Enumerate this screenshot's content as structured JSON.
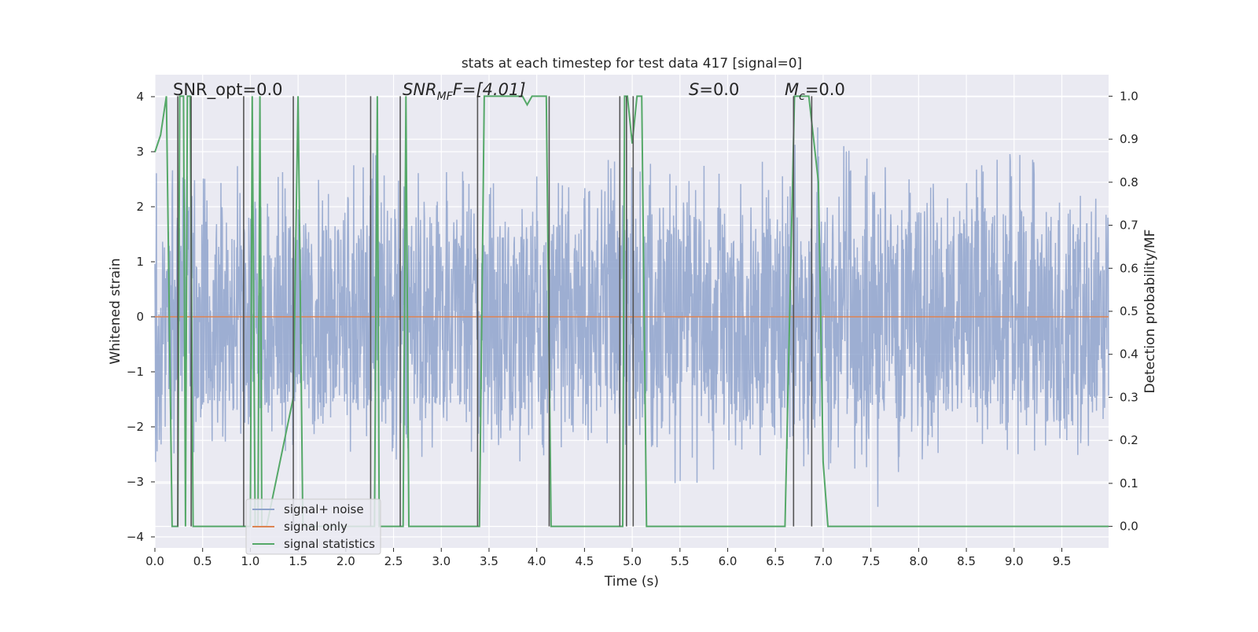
{
  "chart_data": {
    "type": "line",
    "title": "stats at each timestep for test data 417 [signal=0]",
    "xlabel": "Time (s)",
    "ylabel": "Whitened strain",
    "ylabel_right": "Detection probability/MF",
    "xlim": [
      0.0,
      9.99
    ],
    "ylim": [
      -4.2,
      4.4
    ],
    "ylim_right": [
      -0.05,
      1.05
    ],
    "xticks": [
      "0.0",
      "0.5",
      "1.0",
      "1.5",
      "2.0",
      "2.5",
      "3.0",
      "3.5",
      "4.0",
      "4.5",
      "5.0",
      "5.5",
      "6.0",
      "6.5",
      "7.0",
      "7.5",
      "8.0",
      "8.5",
      "9.0",
      "9.5"
    ],
    "yticks_left": [
      "4",
      "3",
      "2",
      "1",
      "0",
      "−1",
      "−2",
      "−3",
      "−4"
    ],
    "yticks_right": [
      "1.0",
      "0.9",
      "0.8",
      "0.7",
      "0.6",
      "0.5",
      "0.4",
      "0.3",
      "0.2",
      "0.1",
      "0.0"
    ],
    "annotations": {
      "snr_opt": "SNR_opt=0.0",
      "snr_mf_prefix": "SNR",
      "snr_mf_sub": "MF",
      "snr_mf_suffix": "F=[4.01]",
      "s_prefix": "S",
      "s_suffix": "=0.0",
      "mc_prefix": "M",
      "mc_sub": "c",
      "mc_suffix": "=0.0"
    },
    "legend": {
      "position": "lower-left",
      "entries": [
        {
          "label": "signal+ noise",
          "color": "#8fa3cc"
        },
        {
          "label": "signal only",
          "color": "#dd8452"
        },
        {
          "label": "signal statistics",
          "color": "#55a868"
        }
      ]
    },
    "series": [
      {
        "name": "signal+ noise",
        "axis": "left",
        "color": "#8fa3cc",
        "description_envelope": {
          "upper": [
            [
              0.0,
              2.7
            ],
            [
              0.5,
              2.6
            ],
            [
              1.0,
              2.9
            ],
            [
              1.5,
              2.7
            ],
            [
              2.0,
              2.5
            ],
            [
              2.3,
              3.7
            ],
            [
              2.5,
              2.8
            ],
            [
              3.0,
              2.6
            ],
            [
              3.5,
              3.0
            ],
            [
              4.0,
              2.7
            ],
            [
              4.5,
              2.8
            ],
            [
              5.0,
              3.1
            ],
            [
              5.5,
              2.9
            ],
            [
              6.0,
              2.7
            ],
            [
              6.5,
              2.9
            ],
            [
              7.0,
              3.9
            ],
            [
              7.5,
              2.8
            ],
            [
              8.0,
              2.9
            ],
            [
              8.5,
              2.7
            ],
            [
              9.0,
              3.1
            ],
            [
              9.5,
              2.7
            ],
            [
              9.99,
              2.2
            ]
          ],
          "lower": [
            [
              0.0,
              -3.3
            ],
            [
              0.5,
              -2.4
            ],
            [
              1.0,
              -2.6
            ],
            [
              1.5,
              -2.7
            ],
            [
              2.0,
              -2.5
            ],
            [
              2.5,
              -2.8
            ],
            [
              3.0,
              -2.6
            ],
            [
              3.5,
              -2.6
            ],
            [
              4.0,
              -2.7
            ],
            [
              4.5,
              -2.5
            ],
            [
              5.0,
              -2.8
            ],
            [
              5.5,
              -3.3
            ],
            [
              6.0,
              -2.6
            ],
            [
              6.5,
              -2.6
            ],
            [
              7.0,
              -2.8
            ],
            [
              7.5,
              -3.2
            ],
            [
              7.6,
              -3.6
            ],
            [
              8.0,
              -2.7
            ],
            [
              8.5,
              -2.6
            ],
            [
              9.0,
              -2.5
            ],
            [
              9.5,
              -3.0
            ],
            [
              9.99,
              -2.1
            ]
          ],
          "core_abs": 1.4
        }
      },
      {
        "name": "signal only",
        "axis": "left",
        "color": "#dd8452",
        "x": [
          0.0,
          9.99
        ],
        "y": [
          0.0,
          0.0
        ]
      },
      {
        "name": "signal statistics",
        "axis": "right",
        "color": "#55a868",
        "x": [
          0.0,
          0.06,
          0.12,
          0.18,
          0.24,
          0.26,
          0.3,
          0.32,
          0.34,
          0.37,
          0.4,
          0.43,
          1.0,
          1.02,
          1.05,
          1.08,
          1.1,
          1.12,
          1.14,
          1.17,
          1.45,
          1.5,
          1.55,
          1.6,
          2.3,
          2.33,
          2.35,
          2.38,
          2.6,
          2.63,
          2.66,
          2.7,
          3.4,
          3.45,
          3.85,
          3.9,
          3.95,
          4.1,
          4.15,
          4.2,
          4.9,
          4.92,
          4.95,
          5.0,
          5.05,
          5.1,
          5.15,
          6.5,
          6.6,
          6.7,
          6.75,
          6.85,
          6.95,
          7.0,
          7.05,
          9.99
        ],
        "y": [
          0.87,
          0.91,
          1.0,
          0.0,
          0.0,
          1.0,
          1.0,
          0.0,
          1.0,
          1.0,
          0.0,
          0.0,
          0.0,
          1.0,
          0.0,
          0.0,
          1.0,
          0.0,
          0.0,
          0.0,
          0.3,
          1.0,
          0.0,
          0.0,
          0.0,
          1.0,
          0.0,
          0.0,
          0.0,
          1.0,
          0.0,
          0.0,
          0.0,
          1.0,
          1.0,
          0.98,
          1.0,
          1.0,
          0.0,
          0.0,
          0.0,
          1.0,
          1.0,
          0.89,
          1.0,
          1.0,
          0.0,
          0.0,
          0.0,
          1.0,
          1.0,
          1.0,
          0.8,
          0.15,
          0.0,
          0.0
        ]
      }
    ],
    "vertical_lines": {
      "color": "#555555",
      "x": [
        0.24,
        0.38,
        0.93,
        1.45,
        2.26,
        2.57,
        3.38,
        4.13,
        4.87,
        4.94,
        5.01,
        6.69,
        6.88
      ]
    },
    "colors": {
      "plot_bg": "#eaeaf2",
      "grid": "#ffffff",
      "page_bg": "#ffffff"
    },
    "grid": true
  }
}
